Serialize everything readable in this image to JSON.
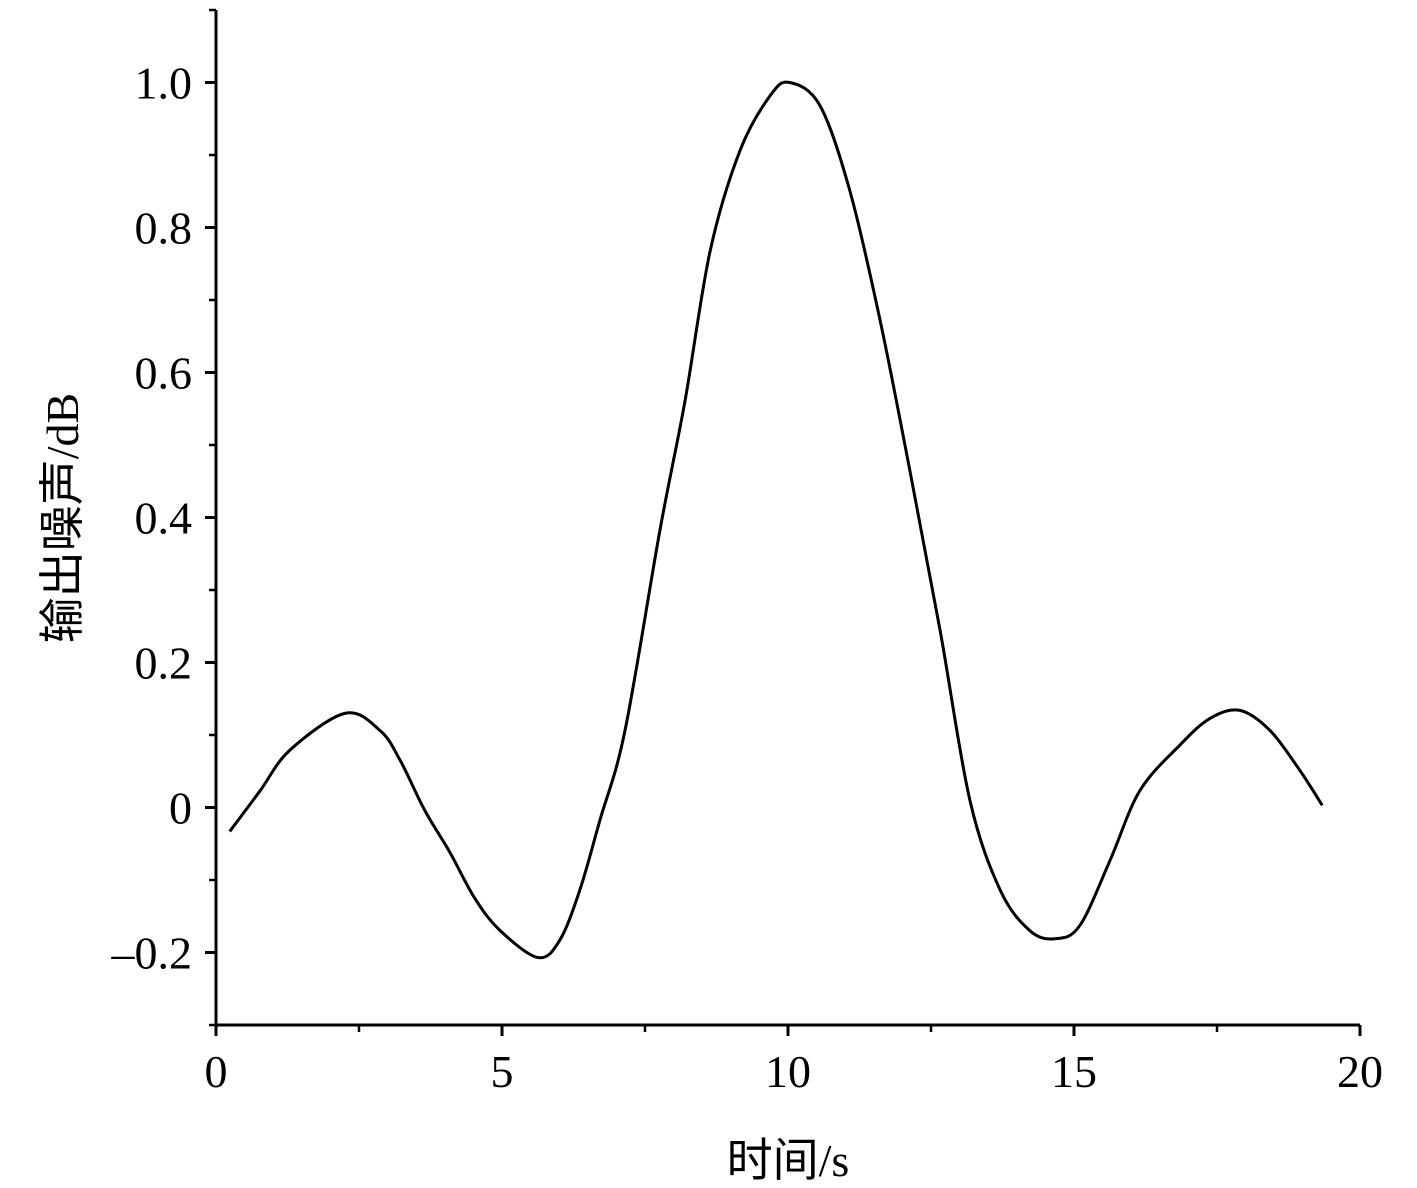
{
  "chart_data": {
    "type": "line",
    "title": "",
    "xlabel": "时间/s",
    "ylabel": "输出噪声/dB",
    "xlim": [
      0,
      20
    ],
    "ylim": [
      -0.3,
      1.1
    ],
    "xticks": [
      0,
      5,
      10,
      15,
      20
    ],
    "xtick_labels": [
      "0",
      "5",
      "10",
      "15",
      "20"
    ],
    "yticks": [
      -0.2,
      0,
      0.2,
      0.4,
      0.6,
      0.8,
      1.0
    ],
    "ytick_labels": [
      "–0.2",
      "0",
      "0.2",
      "0.4",
      "0.6",
      "0.8",
      "1.0"
    ],
    "grid": false,
    "line_color": "#000000",
    "series": [
      {
        "x": [
          0.24,
          0.77,
          1.29,
          2.26,
          2.87,
          3.22,
          3.65,
          4.09,
          4.53,
          4.97,
          5.63,
          6.01,
          6.36,
          6.71,
          7.15,
          7.76,
          8.2,
          8.64,
          9.16,
          9.69,
          10.03,
          10.56,
          11.08,
          11.61,
          12.13,
          12.66,
          13.18,
          13.71,
          14.23,
          14.67,
          15.1,
          15.63,
          16.15,
          16.85,
          17.38,
          17.9,
          18.43,
          18.95,
          19.34
        ],
        "y": [
          -0.033,
          0.023,
          0.079,
          0.13,
          0.106,
          0.065,
          -0.004,
          -0.062,
          -0.126,
          -0.17,
          -0.207,
          -0.183,
          -0.114,
          -0.018,
          0.106,
          0.382,
          0.561,
          0.768,
          0.906,
          0.982,
          1.0,
          0.968,
          0.851,
          0.672,
          0.465,
          0.244,
          0.01,
          -0.114,
          -0.17,
          -0.181,
          -0.163,
          -0.073,
          0.023,
          0.086,
          0.123,
          0.134,
          0.106,
          0.051,
          0.003
        ]
      }
    ]
  }
}
